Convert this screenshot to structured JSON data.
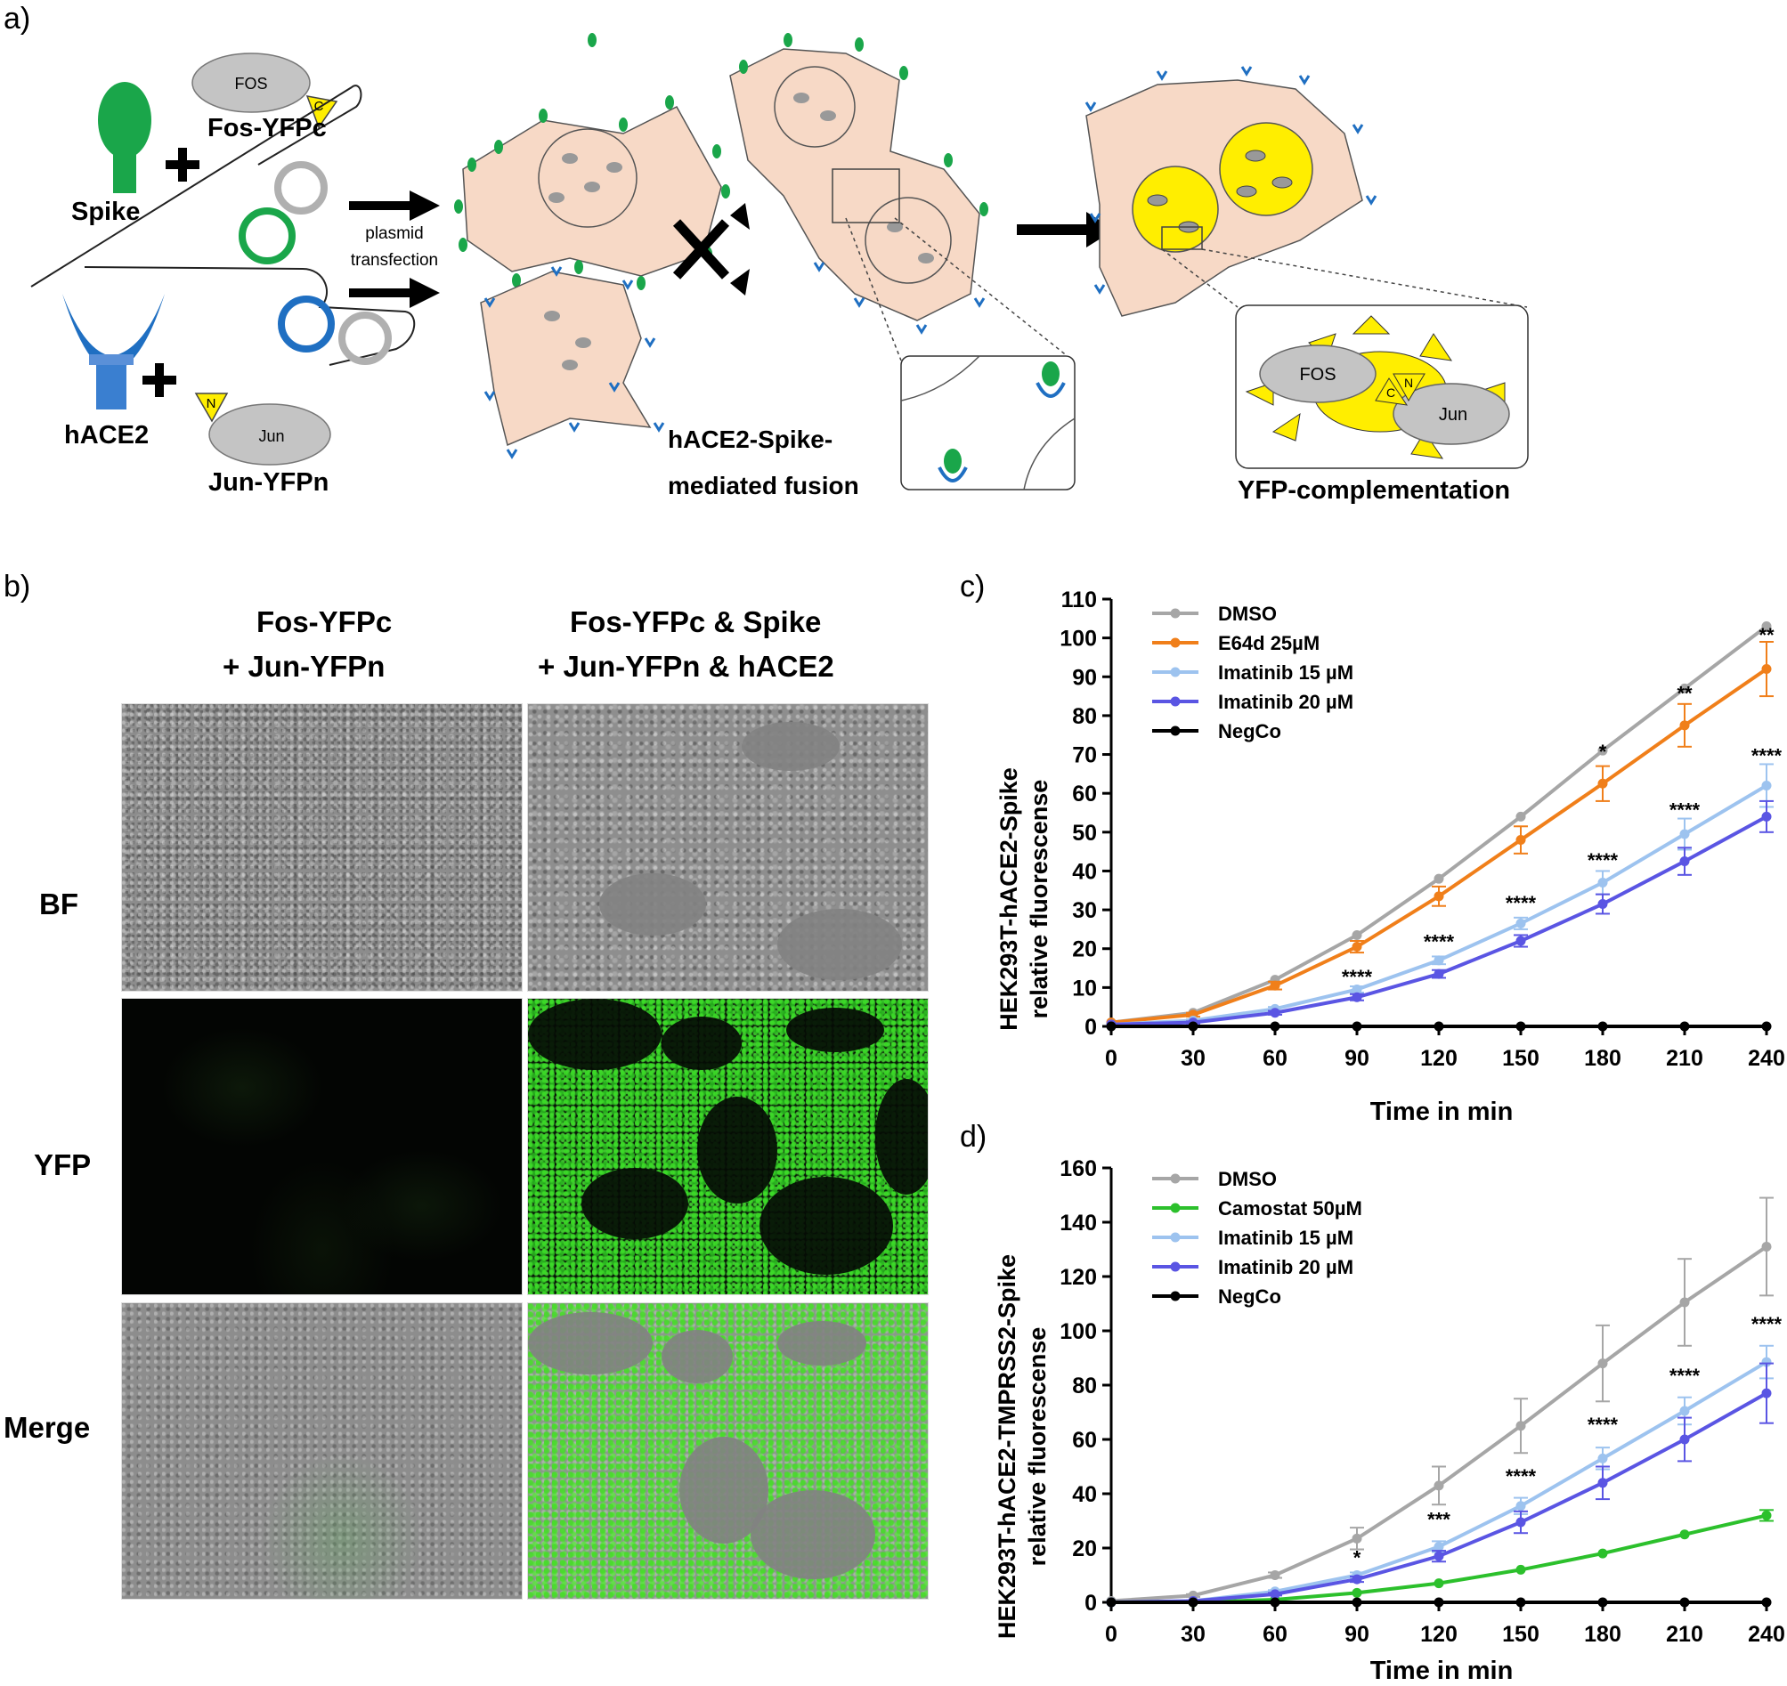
{
  "panels": {
    "a": "a)",
    "b": "b)",
    "c": "c)",
    "d": "d)"
  },
  "schematic": {
    "spike": "Spike",
    "hace2": "hACE2",
    "fos_box": "FOS",
    "fos_yfpc": "Fos-YFPc",
    "jun_box": "Jun",
    "jun_yfpn": "Jun-YFPn",
    "c_tag": "C",
    "n_tag": "N",
    "plasmid_line1": "plasmid",
    "plasmid_line2": "transfection",
    "fusion_line1": "hACE2-Spike-",
    "fusion_line2": "mediated fusion",
    "complementation": "YFP-complementation",
    "colors": {
      "spike": "#1aa64a",
      "hace2": "#1f6fc2",
      "cell": "#f7d9c6",
      "yfp": "#ffee00"
    }
  },
  "micrographs": {
    "col1_line1": "Fos-YFPc",
    "col1_line2": "+ Jun-YFPn",
    "col2_line1": "Fos-YFPc & Spike",
    "col2_line2": "+ Jun-YFPn & hACE2",
    "rows": [
      "BF",
      "YFP",
      "Merge"
    ]
  },
  "chart_data": [
    {
      "type": "line",
      "panel": "c)",
      "ylabel": "HEK293T-hACE2-Spike relative fluorescense",
      "ylabel_line1": "HEK293T-hACE2-Spike",
      "ylabel_line2": "relative fluorescense",
      "xlabel": "Time in min",
      "x": [
        0,
        30,
        60,
        90,
        120,
        150,
        180,
        210,
        240
      ],
      "xlim": [
        0,
        240
      ],
      "ylim": [
        0,
        110
      ],
      "yticks": [
        0,
        10,
        20,
        30,
        40,
        50,
        60,
        70,
        80,
        90,
        100,
        110
      ],
      "legend_position": "top-left",
      "series": [
        {
          "name": "DMSO",
          "color": "#a6a6a6",
          "values": [
            1,
            3.5,
            12,
            23.5,
            38,
            54,
            71,
            87,
            103
          ],
          "errors": [
            0,
            0,
            0,
            0,
            0,
            0,
            0,
            0,
            0
          ]
        },
        {
          "name": "E64d 25µM",
          "color": "#f07f1a",
          "values": [
            1,
            3,
            10.5,
            20.5,
            33.5,
            48,
            62.5,
            77.5,
            92
          ],
          "errors": [
            0,
            0.5,
            1,
            1.5,
            2.5,
            3.5,
            4.5,
            5.5,
            7
          ]
        },
        {
          "name": "Imatinib 15 µM",
          "color": "#9dc3ef",
          "values": [
            0.5,
            1.5,
            4.5,
            9.5,
            17,
            26.5,
            37,
            49.5,
            62
          ],
          "errors": [
            0,
            0.3,
            0.5,
            0.8,
            1,
            1.5,
            3,
            4,
            5.5
          ]
        },
        {
          "name": "Imatinib 20 µM",
          "color": "#5a55e3",
          "values": [
            0.5,
            1,
            3.5,
            7.5,
            13.5,
            22,
            31.5,
            42.5,
            54
          ],
          "errors": [
            0,
            0.3,
            0.5,
            0.8,
            1,
            1.5,
            2.5,
            3.5,
            4
          ]
        },
        {
          "name": "NegCo",
          "color": "#000000",
          "values": [
            0,
            0,
            0,
            0,
            0,
            0,
            0,
            0,
            0
          ],
          "errors": [
            0,
            0,
            0,
            0,
            0,
            0,
            0,
            0,
            0
          ]
        }
      ],
      "annotations": [
        {
          "x": 90,
          "y": 11,
          "text": "****"
        },
        {
          "x": 120,
          "y": 20,
          "text": "****"
        },
        {
          "x": 150,
          "y": 30,
          "text": "****"
        },
        {
          "x": 180,
          "y": 41,
          "text": "****"
        },
        {
          "x": 210,
          "y": 54,
          "text": "****"
        },
        {
          "x": 240,
          "y": 68,
          "text": "****"
        },
        {
          "x": 180,
          "y": 69,
          "text": "*"
        },
        {
          "x": 210,
          "y": 84,
          "text": "**"
        },
        {
          "x": 240,
          "y": 99,
          "text": "**"
        }
      ]
    },
    {
      "type": "line",
      "panel": "d)",
      "ylabel": "HEK293T-hACE2-TMPRSS2-Spike relative fluorescense",
      "ylabel_line1": "HEK293T-hACE2-TMPRSS2-Spike",
      "ylabel_line2": "relative fluorescense",
      "xlabel": "Time in min",
      "x": [
        0,
        30,
        60,
        90,
        120,
        150,
        180,
        210,
        240
      ],
      "xlim": [
        0,
        240
      ],
      "ylim": [
        0,
        160
      ],
      "yticks": [
        0,
        20,
        40,
        60,
        80,
        100,
        120,
        140,
        160
      ],
      "legend_position": "top-left",
      "series": [
        {
          "name": "DMSO",
          "color": "#a6a6a6",
          "values": [
            0.5,
            2.5,
            10,
            23.5,
            43,
            65,
            88,
            110.5,
            131
          ],
          "errors": [
            0,
            0.5,
            1,
            4,
            7,
            10,
            14,
            16,
            18
          ]
        },
        {
          "name": "Camostat 50µM",
          "color": "#2cc02c",
          "values": [
            0,
            0,
            1,
            3.5,
            7,
            12,
            18,
            25,
            32
          ],
          "errors": [
            0,
            0,
            0,
            0,
            0,
            0,
            0,
            0,
            2
          ]
        },
        {
          "name": "Imatinib 15 µM",
          "color": "#9dc3ef",
          "values": [
            0,
            0.5,
            4,
            10,
            20.5,
            35.5,
            53,
            70.5,
            88.5
          ],
          "errors": [
            0,
            0.3,
            0.5,
            1,
            2,
            3,
            4,
            5,
            6
          ]
        },
        {
          "name": "Imatinib 20 µM",
          "color": "#5a55e3",
          "values": [
            0,
            0.5,
            3,
            8.5,
            17,
            29.5,
            44,
            60,
            77
          ],
          "errors": [
            0,
            0.3,
            0.5,
            1,
            2,
            4,
            6,
            8,
            11
          ]
        },
        {
          "name": "NegCo",
          "color": "#000000",
          "values": [
            0,
            0,
            0,
            0,
            0,
            0,
            0,
            0,
            0
          ],
          "errors": [
            0,
            0,
            0,
            0,
            0,
            0,
            0,
            0,
            0
          ]
        }
      ],
      "annotations": [
        {
          "x": 90,
          "y": 14,
          "text": "*"
        },
        {
          "x": 120,
          "y": 28,
          "text": "***"
        },
        {
          "x": 150,
          "y": 44,
          "text": "****"
        },
        {
          "x": 180,
          "y": 63,
          "text": "****"
        },
        {
          "x": 210,
          "y": 81,
          "text": "****"
        },
        {
          "x": 240,
          "y": 100,
          "text": "****"
        }
      ]
    }
  ]
}
